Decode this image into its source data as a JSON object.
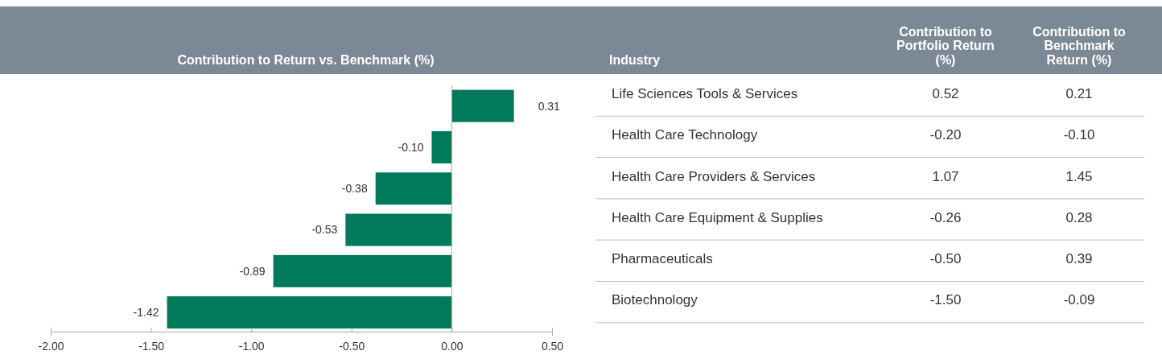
{
  "chart_data": [
    {
      "type": "bar",
      "orientation": "horizontal",
      "title": "Contribution to Return vs. Benchmark (%)",
      "categories": [
        null,
        null,
        null,
        null,
        null,
        null
      ],
      "values": [
        0.31,
        -0.1,
        -0.38,
        -0.53,
        -0.89,
        -1.42
      ],
      "value_labels": [
        "0.31",
        "-0.10",
        "-0.38",
        "-0.53",
        "-0.89",
        "-1.42"
      ],
      "color": "#007a5a",
      "xlim": [
        -2,
        0.5
      ],
      "xticks": [
        {
          "value": -2,
          "label": "-2.00"
        },
        {
          "value": -1.5,
          "label": "-1.50"
        },
        {
          "value": -1,
          "label": "-1.00"
        },
        {
          "value": -0.5,
          "label": "-0.50"
        },
        {
          "value": 0,
          "label": "0.00"
        },
        {
          "value": 0.5,
          "label": "0.50"
        }
      ],
      "legend": false
    },
    {
      "type": "other",
      "xlabel": "Industry",
      "categories": [
        "Life Sciences Tools & Services",
        "Health Care Technology",
        "Health Care Providers & Services",
        "Health Care Equipment & Supplies",
        "Pharmaceuticals",
        "Biotechnology"
      ],
      "series": [
        {
          "name": "Contribution to Portfolio Return (%)",
          "values": [
            0.52,
            -0.2,
            1.07,
            -0.26,
            -0.5,
            -1.5
          ],
          "value_labels": [
            "0.52",
            "-0.20",
            "1.07",
            "-0.26",
            "-0.50",
            "-1.50"
          ]
        },
        {
          "name": "Contribution to Benchmark Return (%)",
          "values": [
            0.21,
            -0.1,
            1.45,
            0.28,
            0.39,
            -0.09
          ],
          "value_labels": [
            "0.21",
            "-0.10",
            "1.45",
            "0.28",
            "0.39",
            "-0.09"
          ]
        }
      ],
      "data_labels": true,
      "legend": false
    }
  ]
}
